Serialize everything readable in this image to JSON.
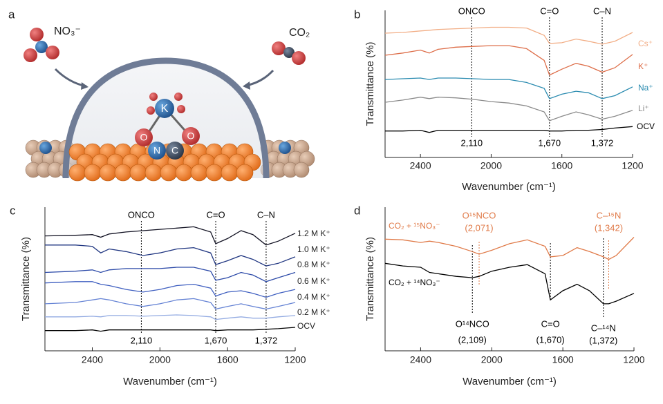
{
  "illustration": {
    "panel": "a",
    "nitrate": "NO₃⁻",
    "co2": "CO₂",
    "atoms": [
      "K",
      "O",
      "N",
      "C",
      "O"
    ]
  },
  "chart_data": [
    {
      "type": "line",
      "panel": "b",
      "x_label": "Wavenumber (cm⁻¹)",
      "y_label": "Transmittance (%)",
      "xlim": [
        2600,
        1200
      ],
      "xticks": [
        2400,
        2000,
        1600,
        1200
      ],
      "ylim": [
        0,
        10
      ],
      "x": [
        2600,
        2500,
        2400,
        2350,
        2300,
        2200,
        2100,
        2000,
        1900,
        1800,
        1700,
        1670,
        1600,
        1520,
        1450,
        1372,
        1300,
        1200
      ],
      "series": [
        {
          "name": "Cs⁺",
          "color": "#f2ae86",
          "values": [
            8.45,
            8.5,
            8.6,
            8.65,
            8.7,
            8.75,
            8.8,
            8.85,
            8.85,
            8.8,
            8.3,
            7.75,
            7.8,
            8.05,
            7.9,
            7.7,
            7.9,
            8.5
          ]
        },
        {
          "name": "K⁺",
          "color": "#dd6d48",
          "values": [
            6.95,
            7.1,
            7.3,
            7.1,
            7.35,
            7.5,
            7.55,
            7.6,
            7.6,
            7.4,
            6.6,
            5.6,
            6.0,
            6.4,
            6.2,
            5.8,
            6.1,
            7.0
          ]
        },
        {
          "name": "Na⁺",
          "color": "#2a8bb0",
          "values": [
            5.3,
            5.35,
            5.4,
            5.3,
            5.4,
            5.4,
            5.35,
            5.3,
            5.3,
            5.1,
            4.7,
            4.0,
            4.3,
            4.5,
            4.4,
            4.0,
            4.2,
            4.8
          ]
        },
        {
          "name": "Li⁺",
          "color": "#8a8a8a",
          "values": [
            3.75,
            3.9,
            4.1,
            4.0,
            4.1,
            4.05,
            3.95,
            3.8,
            3.7,
            3.5,
            3.1,
            2.5,
            2.8,
            3.1,
            2.9,
            2.6,
            2.8,
            3.2
          ]
        },
        {
          "name": "OCV",
          "color": "#000000",
          "values": [
            1.8,
            1.8,
            1.85,
            1.7,
            1.85,
            1.85,
            1.85,
            1.85,
            1.85,
            1.85,
            1.85,
            1.8,
            1.8,
            1.85,
            1.85,
            1.9,
            2.0,
            2.1
          ]
        }
      ],
      "markers": [
        {
          "name": "ONCO",
          "value": 2110,
          "value_label": "2,110",
          "color": "#000000"
        },
        {
          "name": "C=O",
          "value": 1670,
          "value_label": "1,670",
          "color": "#000000"
        },
        {
          "name": "C–N",
          "value": 1372,
          "value_label": "1,372",
          "color": "#000000"
        }
      ]
    },
    {
      "type": "line",
      "panel": "c",
      "x_label": "Wavenumber (cm⁻¹)",
      "y_label": "Transmittance (%)",
      "xlim": [
        2680,
        1200
      ],
      "xticks": [
        2400,
        2000,
        1600,
        1200
      ],
      "ylim": [
        -1,
        10
      ],
      "x": [
        2680,
        2500,
        2400,
        2350,
        2300,
        2200,
        2100,
        2000,
        1900,
        1800,
        1700,
        1670,
        1600,
        1520,
        1450,
        1372,
        1300,
        1200
      ],
      "series": [
        {
          "name": "1.2 M K⁺",
          "color": "#111122",
          "values": [
            7.8,
            7.85,
            7.9,
            7.7,
            7.95,
            8.1,
            8.2,
            8.3,
            8.4,
            8.5,
            8.1,
            7.2,
            7.6,
            8.2,
            7.9,
            7.1,
            7.4,
            8.0
          ]
        },
        {
          "name": "1.0 M K⁺",
          "color": "#1f3580",
          "values": [
            7.1,
            7.1,
            7.0,
            6.5,
            6.8,
            6.6,
            6.3,
            6.5,
            6.8,
            6.9,
            6.5,
            5.6,
            5.9,
            6.3,
            6.0,
            5.5,
            5.7,
            6.2
          ]
        },
        {
          "name": "0.8 M K⁺",
          "color": "#2c4aa8",
          "values": [
            5.0,
            5.1,
            5.2,
            5.0,
            5.2,
            5.3,
            5.3,
            5.3,
            5.4,
            5.4,
            5.1,
            4.4,
            4.6,
            5.0,
            4.8,
            4.3,
            4.6,
            5.0
          ]
        },
        {
          "name": "0.6 M K⁺",
          "color": "#3f5fc0",
          "values": [
            4.2,
            4.3,
            4.3,
            4.1,
            4.0,
            3.7,
            3.5,
            3.7,
            4.0,
            4.1,
            3.8,
            3.2,
            3.5,
            3.6,
            3.4,
            3.1,
            3.4,
            3.7
          ]
        },
        {
          "name": "0.4 M K⁺",
          "color": "#6482d4",
          "values": [
            2.6,
            2.7,
            2.9,
            3.0,
            2.9,
            2.6,
            2.4,
            2.6,
            2.9,
            3.0,
            2.7,
            2.2,
            2.4,
            2.6,
            2.4,
            2.2,
            2.4,
            2.7
          ]
        },
        {
          "name": "0.2 M K⁺",
          "color": "#93abe2",
          "values": [
            1.6,
            1.6,
            1.65,
            1.6,
            1.7,
            1.7,
            1.65,
            1.7,
            1.75,
            1.7,
            1.6,
            1.4,
            1.5,
            1.6,
            1.5,
            1.5,
            1.6,
            1.7
          ]
        },
        {
          "name": "OCV",
          "color": "#000000",
          "values": [
            0.55,
            0.55,
            0.6,
            0.5,
            0.6,
            0.6,
            0.6,
            0.6,
            0.6,
            0.6,
            0.6,
            0.55,
            0.6,
            0.6,
            0.6,
            0.65,
            0.7,
            0.8
          ]
        }
      ],
      "markers": [
        {
          "name": "ONCO",
          "value": 2110,
          "value_label": "2,110",
          "color": "#000000"
        },
        {
          "name": "C=O",
          "value": 1670,
          "value_label": "1,670",
          "color": "#000000"
        },
        {
          "name": "C–N",
          "value": 1372,
          "value_label": "1,372",
          "color": "#000000"
        }
      ]
    },
    {
      "type": "line",
      "panel": "d",
      "x_label": "Wavenumber (cm⁻¹)",
      "y_label": "Transmittance (%)",
      "xlim": [
        2600,
        1200
      ],
      "xticks": [
        2400,
        2000,
        1600,
        1200
      ],
      "ylim": [
        -1,
        10
      ],
      "x": [
        2600,
        2500,
        2400,
        2350,
        2300,
        2200,
        2109,
        2071,
        2000,
        1900,
        1800,
        1700,
        1670,
        1600,
        1520,
        1450,
        1372,
        1342,
        1300,
        1200
      ],
      "series": [
        {
          "name": "CO₂ + ¹⁵NO₃⁻",
          "color": "#e07a48",
          "values": [
            7.55,
            7.5,
            7.3,
            7.4,
            7.3,
            7.0,
            6.6,
            6.4,
            6.7,
            7.2,
            7.5,
            7.0,
            6.2,
            6.3,
            6.9,
            6.6,
            6.2,
            6.0,
            6.3,
            7.7
          ]
        },
        {
          "name": "CO₂ + ¹⁴NO₃⁻",
          "color": "#000000",
          "values": [
            5.7,
            5.5,
            5.4,
            5.0,
            4.9,
            4.7,
            4.6,
            4.7,
            5.1,
            5.4,
            5.6,
            4.9,
            2.9,
            3.6,
            4.1,
            3.6,
            2.6,
            2.6,
            2.8,
            3.4
          ]
        }
      ],
      "markers": [
        {
          "name": "O¹⁵NCO",
          "value": 2071,
          "value_label": "(2,071)",
          "color": "#e07a48"
        },
        {
          "name": "C–¹⁵N",
          "value": 1342,
          "value_label": "(1,342)",
          "color": "#e07a48"
        },
        {
          "name": "O¹⁴NCO",
          "value": 2109,
          "value_label": "(2,109)",
          "color": "#000000"
        },
        {
          "name": "C=O",
          "value": 1670,
          "value_label": "(1,670)",
          "color": "#000000"
        },
        {
          "name": "C–¹⁴N",
          "value": 1372,
          "value_label": "(1,372)",
          "color": "#000000"
        }
      ]
    }
  ]
}
